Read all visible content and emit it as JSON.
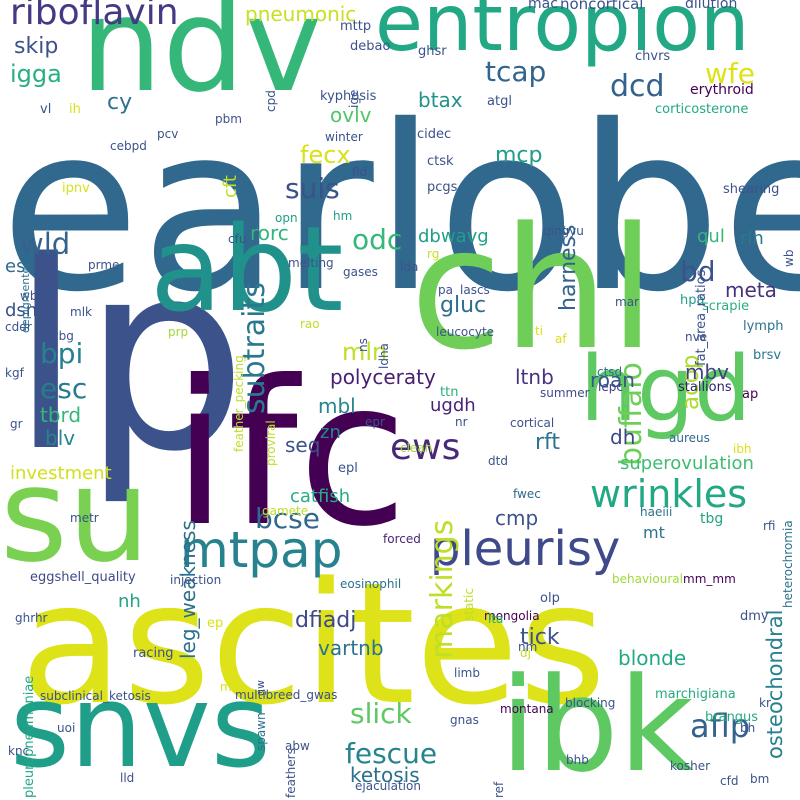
{
  "words": [
    {
      "text": "earlobe",
      "color": "#31688e",
      "angle": 0
    },
    {
      "text": "lp",
      "color": "#3b528b",
      "angle": 0
    },
    {
      "text": "ifc",
      "color": "#440154",
      "angle": 0
    },
    {
      "text": "ascites",
      "color": "#dde318",
      "angle": 0
    },
    {
      "text": "chl",
      "color": "#6ece58",
      "angle": 0
    },
    {
      "text": "abt",
      "color": "#21918c",
      "angle": 0
    },
    {
      "text": "ndv",
      "color": "#35b779",
      "angle": 0
    },
    {
      "text": "su",
      "color": "#7ad151",
      "angle": 0
    },
    {
      "text": "snvs",
      "color": "#1f9e89",
      "angle": 0
    },
    {
      "text": "ibk",
      "color": "#5ec962",
      "angle": 0
    },
    {
      "text": "entropion",
      "color": "#22a884",
      "angle": 0
    },
    {
      "text": "hgd",
      "color": "#5ec962",
      "angle": 0
    },
    {
      "text": "pleurisy",
      "color": "#3e4a89",
      "angle": 0
    },
    {
      "text": "mtpap",
      "color": "#26828e",
      "angle": 0
    },
    {
      "text": "riboflavin",
      "color": "#443983",
      "angle": 0
    },
    {
      "text": "ews",
      "color": "#482878",
      "angle": 0
    },
    {
      "text": "wrinkles",
      "color": "#22a884",
      "angle": 0
    },
    {
      "text": "subtraits",
      "color": "#2a788e",
      "angle": 270
    },
    {
      "text": "buffalo",
      "color": "#6ece58",
      "angle": 270
    },
    {
      "text": "markings",
      "color": "#bddf26",
      "angle": 270
    },
    {
      "text": "leg_weakness",
      "color": "#2d708e",
      "angle": 270
    },
    {
      "text": "osteochondral",
      "color": "#26828e",
      "angle": 270
    },
    {
      "text": "harness",
      "color": "#33638d",
      "angle": 270
    },
    {
      "text": "acop",
      "color": "#addc30",
      "angle": 270
    },
    {
      "text": "slick",
      "color": "#5ec962",
      "angle": 0
    },
    {
      "text": "fescue",
      "color": "#25848e",
      "angle": 0
    },
    {
      "text": "aflp",
      "color": "#33638d",
      "angle": 0
    },
    {
      "text": "bcse",
      "color": "#31688e",
      "angle": 0
    },
    {
      "text": "suis",
      "color": "#3b528b",
      "angle": 0
    },
    {
      "text": "tcap",
      "color": "#32658e",
      "angle": 0
    },
    {
      "text": "dcd",
      "color": "#33638d",
      "angle": 0
    },
    {
      "text": "wfe",
      "color": "#dde318",
      "angle": 0
    },
    {
      "text": "wld",
      "color": "#33638d",
      "angle": 0
    },
    {
      "text": "odc",
      "color": "#35b779",
      "angle": 0
    },
    {
      "text": "bd",
      "color": "#3b528b",
      "angle": 0
    },
    {
      "text": "esc",
      "color": "#287c8e",
      "angle": 0
    },
    {
      "text": "bpi",
      "color": "#26828e",
      "angle": 0
    },
    {
      "text": "mln",
      "color": "#bddf26",
      "angle": 0
    },
    {
      "text": "igga",
      "color": "#2ab07f",
      "angle": 0
    },
    {
      "text": "fecx",
      "color": "#d8e219",
      "angle": 0
    },
    {
      "text": "cy",
      "color": "#2c728e",
      "angle": 0
    },
    {
      "text": "skip",
      "color": "#3b528b",
      "angle": 0
    },
    {
      "text": "pneumonic",
      "color": "#c8e020",
      "angle": 0
    },
    {
      "text": "mcp",
      "color": "#1f9e89",
      "angle": 0
    },
    {
      "text": "btax",
      "color": "#21918c",
      "angle": 0
    },
    {
      "text": "ovlv",
      "color": "#52c569",
      "angle": 0
    },
    {
      "text": "polyceraty",
      "color": "#481f70",
      "angle": 0
    },
    {
      "text": "gluc",
      "color": "#2e6e8e",
      "angle": 0
    },
    {
      "text": "dfiadj",
      "color": "#3e4989",
      "angle": 0
    },
    {
      "text": "vartnb",
      "color": "#2c718e",
      "angle": 0
    },
    {
      "text": "tick",
      "color": "#3b528b",
      "angle": 0
    },
    {
      "text": "blonde",
      "color": "#22a884",
      "angle": 0
    },
    {
      "text": "superovulation",
      "color": "#3dbc74",
      "angle": 0
    },
    {
      "text": "investment",
      "color": "#d0e11c",
      "angle": 0
    },
    {
      "text": "catfish",
      "color": "#26ad81",
      "angle": 0
    },
    {
      "text": "dbwavg",
      "color": "#1fa088",
      "angle": 0
    },
    {
      "text": "rorc",
      "color": "#31b57b",
      "angle": 0
    },
    {
      "text": "ketosis",
      "color": "#2d708e",
      "angle": 0
    },
    {
      "text": "meta",
      "color": "#46327e",
      "angle": 0
    },
    {
      "text": "roan",
      "color": "#39568c",
      "angle": 0
    },
    {
      "text": "ltnb",
      "color": "#46327e",
      "angle": 0
    },
    {
      "text": "ugdh",
      "color": "#482475",
      "angle": 0
    },
    {
      "text": "rft",
      "color": "#2b748e",
      "angle": 0
    },
    {
      "text": "cmp",
      "color": "#3b528b",
      "angle": 0
    },
    {
      "text": "dh",
      "color": "#404688",
      "angle": 0
    },
    {
      "text": "mbl",
      "color": "#24868e",
      "angle": 0
    },
    {
      "text": "mbv",
      "color": "#424086",
      "angle": 0
    },
    {
      "text": "seq",
      "color": "#3b528b",
      "angle": 0
    },
    {
      "text": "zn",
      "color": "#23888e",
      "angle": 0
    },
    {
      "text": "nh",
      "color": "#20a386",
      "angle": 0
    },
    {
      "text": "tbrd",
      "color": "#35b779",
      "angle": 0
    },
    {
      "text": "blv",
      "color": "#25858e",
      "angle": 0
    },
    {
      "text": "dsn",
      "color": "#3b528b",
      "angle": 0
    },
    {
      "text": "es",
      "color": "#31688e",
      "angle": 0
    },
    {
      "text": "qul",
      "color": "#35b779",
      "angle": 0
    },
    {
      "text": "rln",
      "color": "#2a788e",
      "angle": 0
    },
    {
      "text": "cft",
      "color": "#bddf26",
      "angle": 270
    },
    {
      "text": "mt",
      "color": "#2c728e",
      "angle": 0
    },
    {
      "text": "eggshell_quality",
      "color": "#3e4989",
      "angle": 0
    },
    {
      "text": "ap",
      "color": "#440154",
      "angle": 0
    },
    {
      "text": "scrapie",
      "color": "#29af7f",
      "angle": 0
    },
    {
      "text": "hpa",
      "color": "#1f9e89",
      "angle": 0
    },
    {
      "text": "lymph",
      "color": "#2c728e",
      "angle": 0
    },
    {
      "text": "nve",
      "color": "#3b528b",
      "angle": 0
    },
    {
      "text": "brsv",
      "color": "#2a788e",
      "angle": 0
    },
    {
      "text": "stallions",
      "color": "#2d1e6e",
      "angle": 0
    },
    {
      "text": "heterochromia",
      "color": "#2c718e",
      "angle": 270
    },
    {
      "text": "ibh",
      "color": "#d8e219",
      "angle": 0
    },
    {
      "text": "aureus",
      "color": "#31688e",
      "angle": 0
    },
    {
      "text": "lepc",
      "color": "#414487",
      "angle": 0
    },
    {
      "text": "ctsd",
      "color": "#2d708e",
      "angle": 0
    },
    {
      "text": "summer",
      "color": "#3e4989",
      "angle": 0
    },
    {
      "text": "cortical",
      "color": "#3b528b",
      "angle": 0
    },
    {
      "text": "epr",
      "color": "#3b528b",
      "angle": 0
    },
    {
      "text": "ttn",
      "color": "#29af7f",
      "angle": 0
    },
    {
      "text": "nr",
      "color": "#3b528b",
      "angle": 0
    },
    {
      "text": "clean",
      "color": "#a2da37",
      "angle": 0
    },
    {
      "text": "dtd",
      "color": "#3b528b",
      "angle": 0
    },
    {
      "text": "fwec",
      "color": "#31688e",
      "angle": 0
    },
    {
      "text": "haeiii",
      "color": "#2c728e",
      "angle": 0
    },
    {
      "text": "tbg",
      "color": "#20a386",
      "angle": 0
    },
    {
      "text": "rfi",
      "color": "#3b528b",
      "angle": 0
    },
    {
      "text": "epl",
      "color": "#3b528b",
      "angle": 0
    },
    {
      "text": "gamete",
      "color": "#bddf26",
      "angle": 0
    },
    {
      "text": "proviral",
      "color": "#bddf26",
      "angle": 270
    },
    {
      "text": "behavioural",
      "color": "#a0da39",
      "angle": 0
    },
    {
      "text": "mm_mm",
      "color": "#440154",
      "angle": 0
    },
    {
      "text": "forced",
      "color": "#482475",
      "angle": 0
    },
    {
      "text": "eosinophil",
      "color": "#2c718e",
      "angle": 0
    },
    {
      "text": "static",
      "color": "#bddf26",
      "angle": 270
    },
    {
      "text": "olp",
      "color": "#3b528b",
      "angle": 0
    },
    {
      "text": "dmy",
      "color": "#3b528b",
      "angle": 0
    },
    {
      "text": "mongolia",
      "color": "#440154",
      "angle": 0
    },
    {
      "text": "lta",
      "color": "#25ab82",
      "angle": 0
    },
    {
      "text": "dj",
      "color": "#bddf26",
      "angle": 0
    },
    {
      "text": "nm",
      "color": "#3b528b",
      "angle": 0
    },
    {
      "text": "af",
      "color": "#d8e219",
      "angle": 0
    },
    {
      "text": "ti",
      "color": "#d8e219",
      "angle": 0
    },
    {
      "text": "leucocyte",
      "color": "#3b528b",
      "angle": 0
    },
    {
      "text": "mar",
      "color": "#3b528b",
      "angle": 0
    },
    {
      "text": "lascs",
      "color": "#3b528b",
      "angle": 0
    },
    {
      "text": "pa",
      "color": "#3b528b",
      "angle": 0
    },
    {
      "text": "ldha",
      "color": "#3b528b",
      "angle": 270
    },
    {
      "text": "ns",
      "color": "#3b528b",
      "angle": 270
    },
    {
      "text": "lda",
      "color": "#3b528b",
      "angle": 0
    },
    {
      "text": "rg",
      "color": "#c8e020",
      "angle": 0
    },
    {
      "text": "gases",
      "color": "#3b528b",
      "angle": 0
    },
    {
      "text": "qingyu",
      "color": "#3b528b",
      "angle": 0
    },
    {
      "text": "melting",
      "color": "#3b528b",
      "angle": 0
    },
    {
      "text": "opn",
      "color": "#1f9e89",
      "angle": 0
    },
    {
      "text": "hm",
      "color": "#1f9e89",
      "angle": 0
    },
    {
      "text": "cfu",
      "color": "#3b528b",
      "angle": 0
    },
    {
      "text": "feather_pecking",
      "color": "#bddf26",
      "angle": 270
    },
    {
      "text": "rao",
      "color": "#bddf26",
      "angle": 0
    },
    {
      "text": "prp",
      "color": "#a2da37",
      "angle": 0
    },
    {
      "text": "prme",
      "color": "#3b528b",
      "angle": 0
    },
    {
      "text": "wbsf",
      "color": "#3b528b",
      "angle": 0
    },
    {
      "text": "mlk",
      "color": "#3b528b",
      "angle": 0
    },
    {
      "text": "cbg",
      "color": "#3b528b",
      "angle": 0
    },
    {
      "text": "cddr",
      "color": "#3b528b",
      "angle": 0
    },
    {
      "text": "kgf",
      "color": "#3b528b",
      "angle": 0
    },
    {
      "text": "gr",
      "color": "#3b528b",
      "angle": 0
    },
    {
      "text": "metr",
      "color": "#3b528b",
      "angle": 0
    },
    {
      "text": "ghrhr",
      "color": "#3b528b",
      "angle": 0
    },
    {
      "text": "pleuropneumoniae",
      "color": "#22a884",
      "angle": 270
    },
    {
      "text": "depigmented",
      "color": "#2c728e",
      "angle": 270
    },
    {
      "text": "injection",
      "color": "#3b528b",
      "angle": 0
    },
    {
      "text": "ep",
      "color": "#d8e219",
      "angle": 0
    },
    {
      "text": "racing",
      "color": "#3b528b",
      "angle": 0
    },
    {
      "text": "gw",
      "color": "#3b528b",
      "angle": 270
    },
    {
      "text": "spawn",
      "color": "#2c728e",
      "angle": 270
    },
    {
      "text": "max",
      "color": "#d8e219",
      "angle": 0
    },
    {
      "text": "subclinical_ketosis",
      "color": "#3b528b",
      "angle": 0
    },
    {
      "text": "uoi",
      "color": "#3b528b",
      "angle": 0
    },
    {
      "text": "multibreed_gwas",
      "color": "#3b528b",
      "angle": 0
    },
    {
      "text": "montana",
      "color": "#440154",
      "angle": 0
    },
    {
      "text": "gnas",
      "color": "#3b528b",
      "angle": 0
    },
    {
      "text": "limb",
      "color": "#3b528b",
      "angle": 0
    },
    {
      "text": "blocking",
      "color": "#3b528b",
      "angle": 0
    },
    {
      "text": "marchigiana",
      "color": "#25ab82",
      "angle": 0
    },
    {
      "text": "brangus",
      "color": "#25ab82",
      "angle": 0
    },
    {
      "text": "kr",
      "color": "#3b528b",
      "angle": 0
    },
    {
      "text": "bh",
      "color": "#3b528b",
      "angle": 0
    },
    {
      "text": "ejaculation",
      "color": "#3b528b",
      "angle": 0
    },
    {
      "text": "feathers",
      "color": "#3b528b",
      "angle": 270
    },
    {
      "text": "abw",
      "color": "#3b528b",
      "angle": 0
    },
    {
      "text": "lld",
      "color": "#3b528b",
      "angle": 0
    },
    {
      "text": "knc",
      "color": "#3b528b",
      "angle": 0
    },
    {
      "text": "ref",
      "color": "#3b528b",
      "angle": 270
    },
    {
      "text": "bhb",
      "color": "#3b528b",
      "angle": 0
    },
    {
      "text": "kosher",
      "color": "#3b528b",
      "angle": 0
    },
    {
      "text": "cfd",
      "color": "#3b528b",
      "angle": 0
    },
    {
      "text": "bm",
      "color": "#3b528b",
      "angle": 0
    },
    {
      "text": "mac",
      "color": "#3b528b",
      "angle": 0
    },
    {
      "text": "noncortical",
      "color": "#3b528b",
      "angle": 0
    },
    {
      "text": "dilution",
      "color": "#3b528b",
      "angle": 0
    },
    {
      "text": "mttp",
      "color": "#3b528b",
      "angle": 0
    },
    {
      "text": "debao",
      "color": "#3b528b",
      "angle": 0
    },
    {
      "text": "ghsr",
      "color": "#3b528b",
      "angle": 0
    },
    {
      "text": "chvrs",
      "color": "#3b528b",
      "angle": 0
    },
    {
      "text": "erythroid",
      "color": "#440154",
      "angle": 0
    },
    {
      "text": "corticosterone",
      "color": "#22a884",
      "angle": 0
    },
    {
      "text": "atgl",
      "color": "#3b528b",
      "angle": 0
    },
    {
      "text": "kyphosis",
      "color": "#3b528b",
      "angle": 0
    },
    {
      "text": "ige",
      "color": "#3b528b",
      "angle": 270
    },
    {
      "text": "cpd",
      "color": "#3b528b",
      "angle": 270
    },
    {
      "text": "vl",
      "color": "#3b528b",
      "angle": 0
    },
    {
      "text": "ih",
      "color": "#d8e219",
      "angle": 0
    },
    {
      "text": "pbm",
      "color": "#3b528b",
      "angle": 0
    },
    {
      "text": "pcv",
      "color": "#3b528b",
      "angle": 0
    },
    {
      "text": "cebpd",
      "color": "#3b528b",
      "angle": 0
    },
    {
      "text": "winter",
      "color": "#3b528b",
      "angle": 0
    },
    {
      "text": "fld",
      "color": "#3b528b",
      "angle": 0
    },
    {
      "text": "cidec",
      "color": "#3b528b",
      "angle": 0
    },
    {
      "text": "ctsk",
      "color": "#3b528b",
      "angle": 0
    },
    {
      "text": "pcgs",
      "color": "#3b528b",
      "angle": 0
    },
    {
      "text": "ipnv",
      "color": "#d8e219",
      "angle": 0
    },
    {
      "text": "fat_area_ratios",
      "color": "#3b528b",
      "angle": 270
    },
    {
      "text": "shearing",
      "color": "#3b528b",
      "angle": 0
    },
    {
      "text": "wb",
      "color": "#3b528b",
      "angle": 270
    }
  ]
}
